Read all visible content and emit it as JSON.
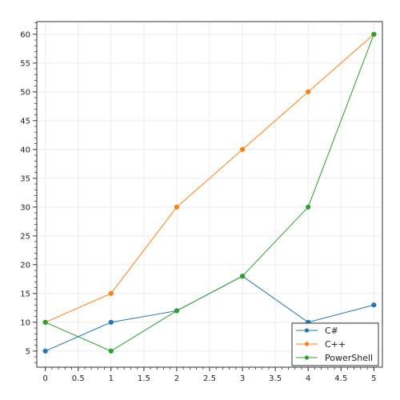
{
  "chart_data": {
    "type": "line",
    "title": "",
    "xlabel": "",
    "ylabel": "",
    "xlim": [
      -0.13,
      5.13
    ],
    "ylim": [
      2.2,
      62.2
    ],
    "x_ticks": [
      0,
      0.5,
      1,
      1.5,
      2,
      2.5,
      3,
      3.5,
      4,
      4.5,
      5
    ],
    "x_tick_labels": [
      "0",
      "0.5",
      "1",
      "1.5",
      "2",
      "2.5",
      "3",
      "3.5",
      "4",
      "4.5",
      "5"
    ],
    "y_ticks": [
      5,
      10,
      15,
      20,
      25,
      30,
      35,
      40,
      45,
      50,
      55,
      60
    ],
    "y_tick_labels": [
      "5",
      "10",
      "15",
      "20",
      "25",
      "30",
      "35",
      "40",
      "45",
      "50",
      "55",
      "60"
    ],
    "grid": true,
    "legend_position": "bottom-right",
    "x": [
      0,
      1,
      2,
      3,
      4,
      5
    ],
    "series": [
      {
        "name": "C#",
        "color": "#1f77b4",
        "values": [
          5,
          10,
          12,
          18,
          10,
          13
        ]
      },
      {
        "name": "C++",
        "color": "#ff7f0e",
        "values": [
          10,
          15,
          30,
          40,
          50,
          60
        ]
      },
      {
        "name": "PowerShell",
        "color": "#2ca02c",
        "values": [
          10,
          5,
          12,
          18,
          30,
          60
        ]
      }
    ]
  }
}
